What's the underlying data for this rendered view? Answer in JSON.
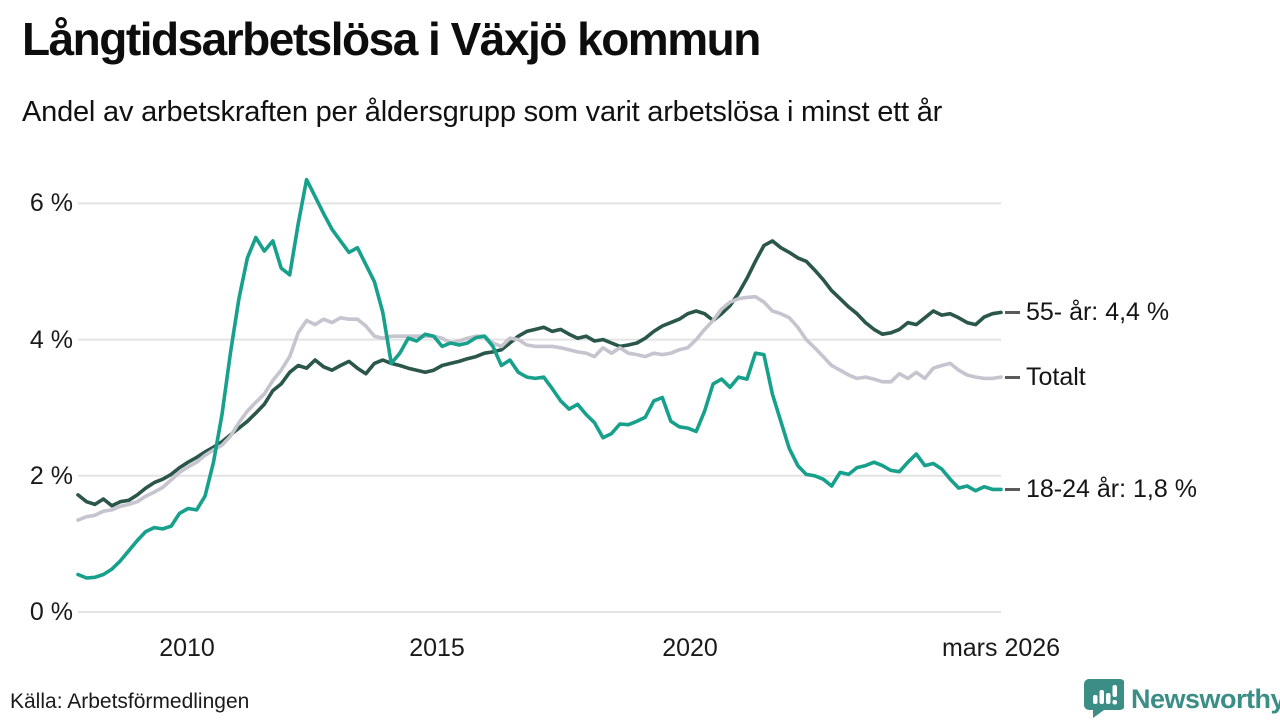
{
  "header": {
    "title": "Långtidsarbetslösa i Växjö kommun",
    "subtitle": "Andel av arbetskraften per åldersgrupp som varit arbetslösa i minst ett år"
  },
  "footer": {
    "source": "Källa: Arbetsförmedlingen",
    "brand_name": "Newsworthy",
    "brand_icon": "newsworthy-speech-bubble-bar-chart-icon",
    "brand_color": "#3a8e85"
  },
  "colors": {
    "teal": "#17a08c",
    "dark_green": "#2b574a",
    "gray": "#c6c4ce",
    "grid": "#e3e3e3",
    "connector": "#5a5a5a"
  },
  "chart_data": {
    "type": "line",
    "title": "Långtidsarbetslösa i Växjö kommun",
    "subtitle": "Andel av arbetskraften per åldersgrupp som varit arbetslösa i minst ett år",
    "grid": "horizontal",
    "legend_position": "right-end-labels",
    "x_start_year": 2008.0,
    "x_step_years": 0.1667,
    "x_end_label": "mars 2026",
    "ylim": [
      0,
      6.6
    ],
    "y_ticks": [
      {
        "label": "0 %",
        "value": 0
      },
      {
        "label": "2 %",
        "value": 2
      },
      {
        "label": "4 %",
        "value": 4
      },
      {
        "label": "6 %",
        "value": 6
      }
    ],
    "x_ticks": [
      {
        "label": "2010",
        "year": 2010
      },
      {
        "label": "2015",
        "year": 2015
      },
      {
        "label": "2020",
        "year": 2020
      },
      {
        "label": "mars 2026",
        "year": 2026.17
      }
    ],
    "series": [
      {
        "name": "55- år",
        "end_label": "55- år: 4,4 %",
        "last_value": 4.4,
        "color_key": "dark_green",
        "values": [
          1.72,
          1.62,
          1.58,
          1.66,
          1.56,
          1.62,
          1.64,
          1.72,
          1.82,
          1.9,
          1.95,
          2.02,
          2.12,
          2.2,
          2.27,
          2.35,
          2.42,
          2.5,
          2.6,
          2.7,
          2.8,
          2.92,
          3.05,
          3.25,
          3.35,
          3.52,
          3.62,
          3.58,
          3.7,
          3.6,
          3.55,
          3.62,
          3.68,
          3.58,
          3.5,
          3.65,
          3.7,
          3.65,
          3.62,
          3.58,
          3.55,
          3.52,
          3.55,
          3.62,
          3.65,
          3.68,
          3.72,
          3.75,
          3.8,
          3.82,
          3.85,
          3.95,
          4.05,
          4.12,
          4.15,
          4.18,
          4.12,
          4.15,
          4.08,
          4.02,
          4.05,
          3.98,
          4.0,
          3.95,
          3.9,
          3.92,
          3.95,
          4.02,
          4.12,
          4.2,
          4.25,
          4.3,
          4.38,
          4.42,
          4.38,
          4.28,
          4.38,
          4.5,
          4.68,
          4.9,
          5.15,
          5.38,
          5.45,
          5.35,
          5.28,
          5.2,
          5.15,
          5.02,
          4.88,
          4.72,
          4.6,
          4.48,
          4.38,
          4.25,
          4.15,
          4.08,
          4.1,
          4.15,
          4.25,
          4.22,
          4.32,
          4.42,
          4.36,
          4.38,
          4.32,
          4.25,
          4.22,
          4.33,
          4.38,
          4.4
        ]
      },
      {
        "name": "Totalt",
        "end_label": "Totalt",
        "last_value": 3.4,
        "color_key": "gray",
        "values": [
          1.35,
          1.4,
          1.42,
          1.48,
          1.5,
          1.55,
          1.58,
          1.62,
          1.7,
          1.76,
          1.83,
          1.94,
          2.05,
          2.13,
          2.2,
          2.3,
          2.38,
          2.45,
          2.58,
          2.78,
          2.95,
          3.08,
          3.2,
          3.4,
          3.55,
          3.75,
          4.1,
          4.28,
          4.22,
          4.3,
          4.25,
          4.32,
          4.3,
          4.3,
          4.2,
          4.05,
          4.02,
          4.05,
          4.05,
          4.05,
          4.05,
          4.05,
          4.05,
          4.02,
          3.95,
          3.98,
          4.02,
          4.05,
          4.05,
          3.95,
          3.9,
          4.02,
          4.0,
          3.92,
          3.9,
          3.9,
          3.9,
          3.88,
          3.85,
          3.82,
          3.8,
          3.75,
          3.88,
          3.8,
          3.88,
          3.8,
          3.78,
          3.75,
          3.8,
          3.78,
          3.8,
          3.85,
          3.88,
          4.0,
          4.15,
          4.28,
          4.45,
          4.55,
          4.6,
          4.62,
          4.63,
          4.55,
          4.42,
          4.38,
          4.32,
          4.18,
          4.0,
          3.88,
          3.75,
          3.62,
          3.55,
          3.48,
          3.43,
          3.45,
          3.42,
          3.38,
          3.38,
          3.5,
          3.43,
          3.52,
          3.43,
          3.58,
          3.62,
          3.65,
          3.55,
          3.48,
          3.45,
          3.43,
          3.43,
          3.45
        ]
      },
      {
        "name": "18-24 år",
        "end_label": "18-24 år: 1,8 %",
        "last_value": 1.8,
        "color_key": "teal",
        "values": [
          0.55,
          0.5,
          0.51,
          0.55,
          0.63,
          0.75,
          0.9,
          1.05,
          1.18,
          1.24,
          1.22,
          1.26,
          1.45,
          1.52,
          1.5,
          1.7,
          2.2,
          2.9,
          3.8,
          4.6,
          5.2,
          5.5,
          5.3,
          5.45,
          5.05,
          4.95,
          5.7,
          6.35,
          6.1,
          5.85,
          5.62,
          5.45,
          5.28,
          5.35,
          5.1,
          4.85,
          4.4,
          3.65,
          3.8,
          4.02,
          3.98,
          4.08,
          4.05,
          3.9,
          3.95,
          3.92,
          3.95,
          4.03,
          4.05,
          3.9,
          3.62,
          3.7,
          3.52,
          3.45,
          3.43,
          3.45,
          3.28,
          3.1,
          2.98,
          3.05,
          2.9,
          2.78,
          2.56,
          2.62,
          2.76,
          2.75,
          2.8,
          2.86,
          3.1,
          3.15,
          2.8,
          2.72,
          2.7,
          2.65,
          2.95,
          3.35,
          3.42,
          3.3,
          3.45,
          3.42,
          3.8,
          3.78,
          3.2,
          2.8,
          2.4,
          2.15,
          2.02,
          2.0,
          1.95,
          1.85,
          2.05,
          2.02,
          2.12,
          2.15,
          2.2,
          2.15,
          2.08,
          2.06,
          2.2,
          2.32,
          2.15,
          2.18,
          2.1,
          1.95,
          1.82,
          1.85,
          1.78,
          1.84,
          1.8,
          1.8
        ]
      }
    ]
  }
}
